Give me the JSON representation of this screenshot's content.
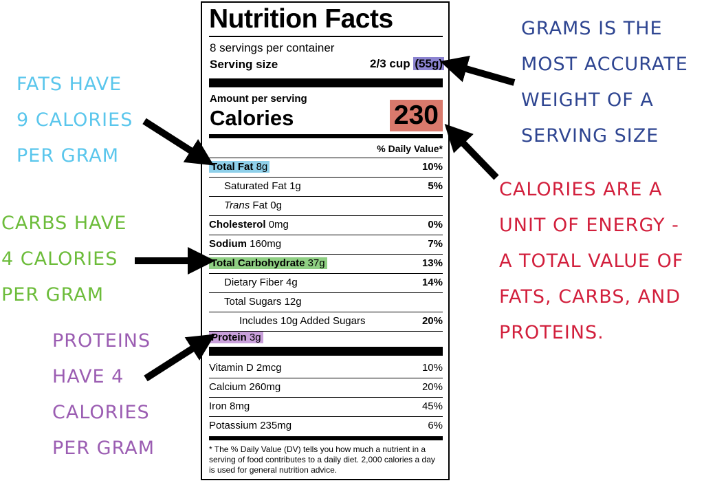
{
  "label": {
    "title": "Nutrition Facts",
    "servings_per_container": "8 servings per container",
    "serving_size_label": "Serving size",
    "serving_size_value": "2/3 cup",
    "serving_size_grams": "(55g)",
    "amount_per_serving": "Amount per serving",
    "calories_label": "Calories",
    "calories_value": "230",
    "daily_value_header": "% Daily Value*",
    "nutrients": [
      {
        "name": "Total Fat",
        "amount": "8g",
        "dv": "10%"
      },
      {
        "name": "Saturated Fat",
        "amount": "1g",
        "dv": "5%"
      },
      {
        "name": "Trans",
        "amount": "Fat 0g",
        "dv": ""
      },
      {
        "name": "Cholesterol",
        "amount": "0mg",
        "dv": "0%"
      },
      {
        "name": "Sodium",
        "amount": "160mg",
        "dv": "7%"
      },
      {
        "name": "Total Carbohydrate",
        "amount": "37g",
        "dv": "13%"
      },
      {
        "name": "Dietary Fiber",
        "amount": "4g",
        "dv": "14%"
      },
      {
        "name": "Total Sugars",
        "amount": "12g",
        "dv": ""
      },
      {
        "name": "Includes 10g Added Sugars",
        "amount": "",
        "dv": "20%"
      },
      {
        "name": "Protein",
        "amount": "3g",
        "dv": ""
      }
    ],
    "vitamins": [
      {
        "name": "Vitamin D 2mcg",
        "dv": "10%"
      },
      {
        "name": "Calcium 260mg",
        "dv": "20%"
      },
      {
        "name": "Iron 8mg",
        "dv": "45%"
      },
      {
        "name": "Potassium 235mg",
        "dv": "6%"
      }
    ],
    "footnote": "* The % Daily Value (DV) tells you how much a nutrient in a serving of food contributes to a daily diet. 2,000 calories a day is used for general nutrition advice."
  },
  "annotations": {
    "grams": [
      "GRAMS IS THE",
      "MOST ACCURATE",
      "WEIGHT OF A",
      "SERVING SIZE"
    ],
    "fats": [
      "FATS HAVE",
      "9 CALORIES",
      "PER GRAM"
    ],
    "carbs": [
      "CARBS HAVE",
      "4 CALORIES",
      "PER GRAM"
    ],
    "proteins": [
      "PROTEINS",
      "HAVE 4",
      "CALORIES",
      "PER GRAM"
    ],
    "calories": [
      "CALORIES ARE A",
      "UNIT OF ENERGY -",
      "A TOTAL VALUE OF",
      "FATS, CARBS, AND",
      "PROTEINS."
    ]
  },
  "colors": {
    "grams_annotation": "#2e4591",
    "fats_annotation": "#5ac6ec",
    "carbs_annotation": "#6cbc3a",
    "proteins_annotation": "#9b5db2",
    "calories_annotation": "#d21f3c",
    "grams_highlight": "#8b83d0",
    "calories_highlight": "#d9796c",
    "fat_highlight": "#8fd0ea",
    "carb_highlight": "#8fcf83",
    "protein_highlight": "#c9a0db"
  }
}
